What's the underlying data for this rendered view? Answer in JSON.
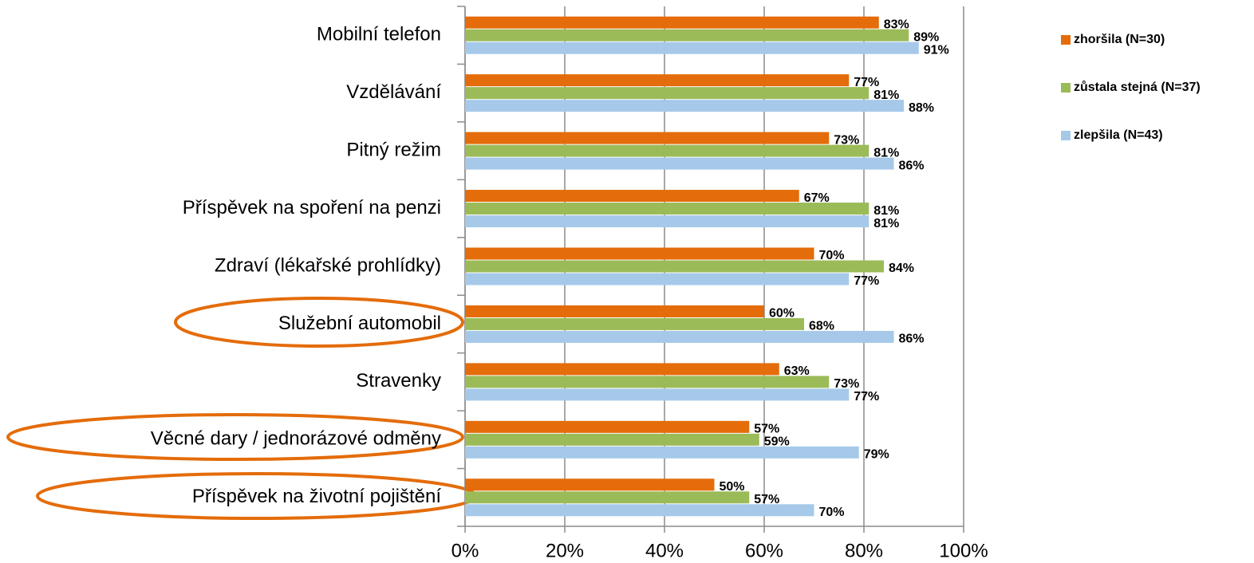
{
  "chart_data": {
    "type": "bar",
    "orientation": "horizontal",
    "categories": [
      "Mobilní telefon",
      "Vzdělávání",
      "Pitný režim",
      "Příspěvek na spoření na penzi",
      "Zdraví (lékařské prohlídky)",
      "Služební automobil",
      "Stravenky",
      "Věcné dary / jednorázové odměny",
      "Příspěvek na životní pojištění"
    ],
    "series": [
      {
        "name": "zhoršila (N=30)",
        "color": "#e46c0a",
        "values": [
          83,
          77,
          73,
          67,
          70,
          60,
          63,
          57,
          50
        ],
        "value_labels": [
          "83%",
          "77%",
          "73%",
          "67%",
          "70%",
          "60%",
          "63%",
          "57%",
          "50%"
        ]
      },
      {
        "name": "zůstala stejná (N=37)",
        "color": "#9bbb59",
        "values": [
          89,
          81,
          81,
          81,
          84,
          68,
          73,
          59,
          57
        ],
        "value_labels": [
          "89%",
          "81%",
          "81%",
          "81%",
          "84%",
          "68%",
          "73%",
          "59%",
          "57%"
        ]
      },
      {
        "name": "zlepšila (N=43)",
        "color": "#a6c9ea",
        "values": [
          91,
          88,
          86,
          81,
          77,
          86,
          77,
          79,
          70
        ],
        "value_labels": [
          "91%",
          "88%",
          "86%",
          "81%",
          "77%",
          "86%",
          "77%",
          "79%",
          "70%"
        ]
      }
    ],
    "xlim": [
      0,
      100
    ],
    "xticks": [
      {
        "value": 0,
        "label": "0%"
      },
      {
        "value": 20,
        "label": "20%"
      },
      {
        "value": 40,
        "label": "40%"
      },
      {
        "value": 60,
        "label": "60%"
      },
      {
        "value": 80,
        "label": "80%"
      },
      {
        "value": 100,
        "label": "100%"
      }
    ],
    "grid": true,
    "legend": "right"
  }
}
